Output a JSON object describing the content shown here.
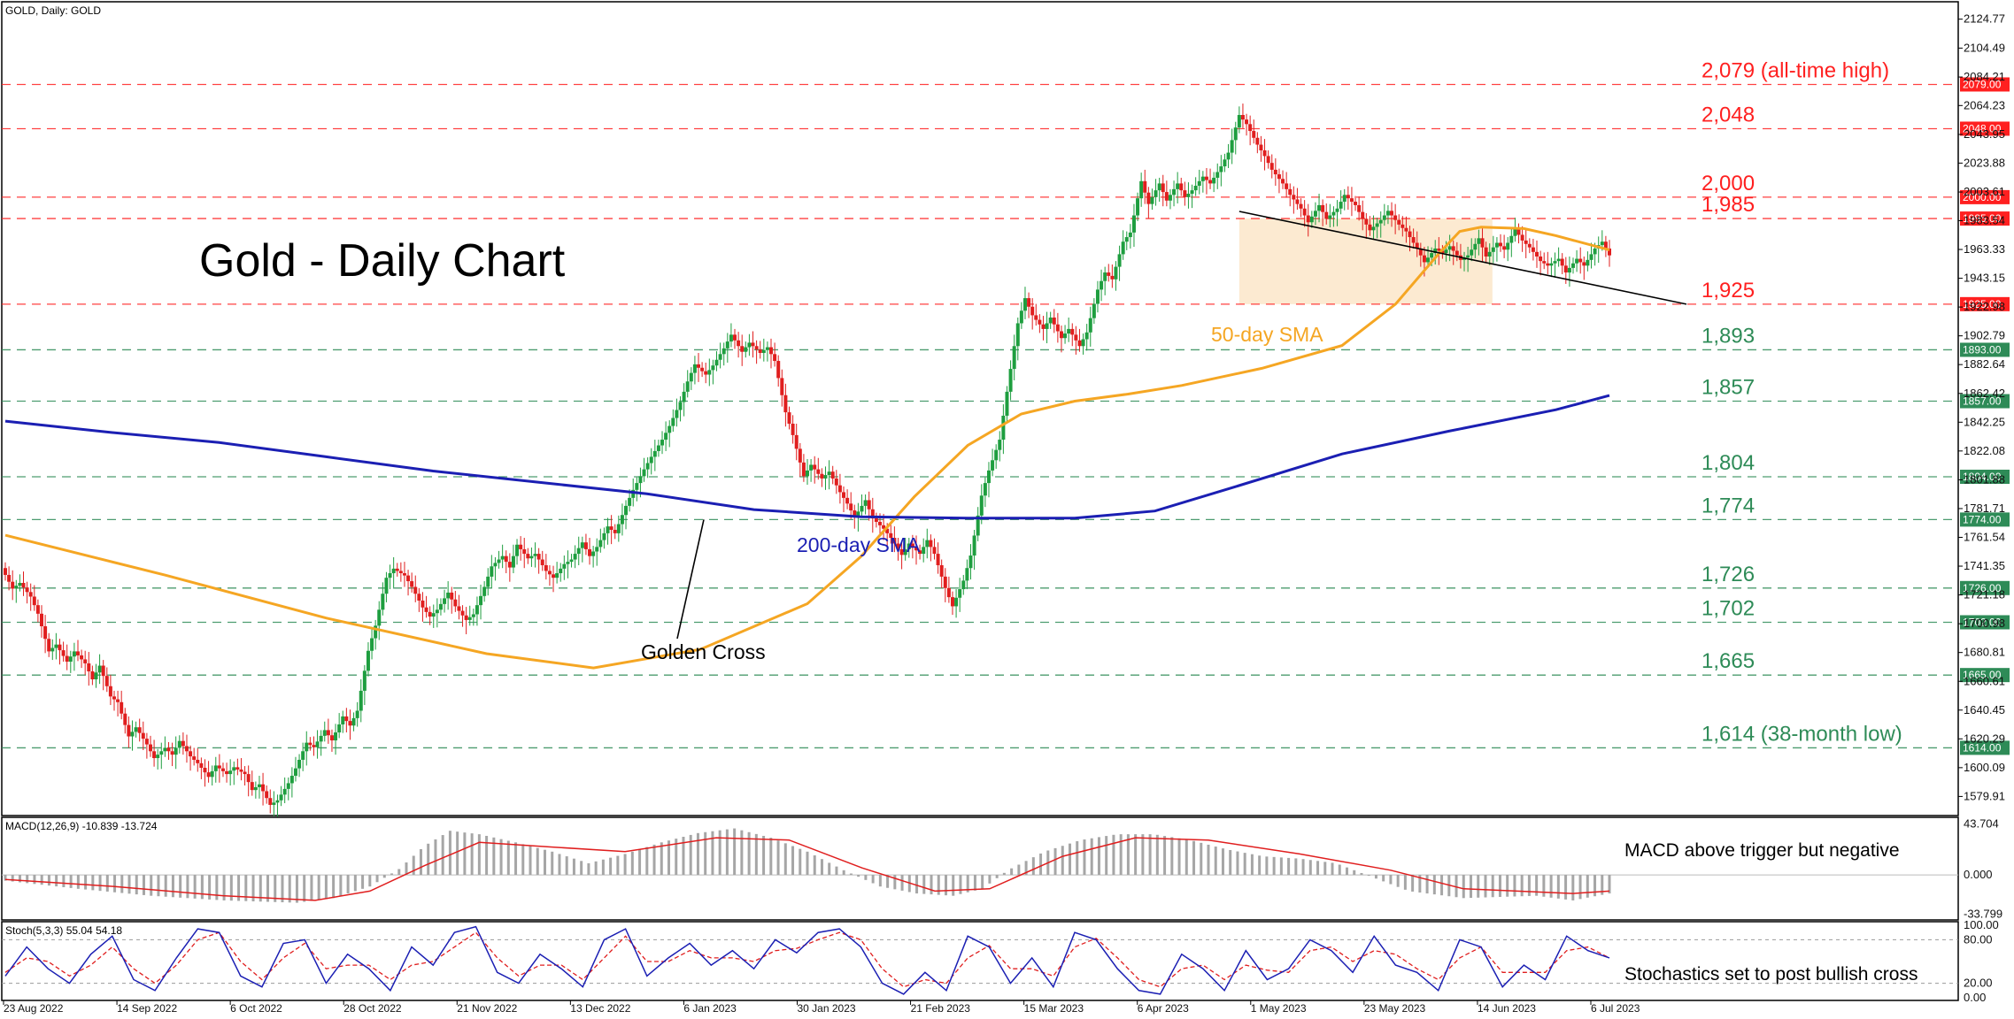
{
  "chart_data": {
    "type": "candlestick",
    "symbol_header": "GOLD, Daily:  GOLD",
    "title": "Gold - Daily Chart",
    "main_panel": {
      "ylim": [
        1569,
        2132
      ],
      "y_ticks": [
        "2124.77",
        "2104.49",
        "2084.21",
        "2064.23",
        "2043.95",
        "2023.88",
        "2003.61",
        "1983.54",
        "1963.33",
        "1943.15",
        "1922.98",
        "1902.79",
        "1882.64",
        "1862.42",
        "1842.25",
        "1822.08",
        "1801.88",
        "1781.71",
        "1761.54",
        "1741.35",
        "1721.18",
        "1700.98",
        "1680.81",
        "1660.61",
        "1640.45",
        "1620.29",
        "1600.09",
        "1579.91"
      ],
      "levels": [
        {
          "value": 2079,
          "box": "2079.00",
          "label": "2,079 (all-time high)",
          "color": "#ff2020"
        },
        {
          "value": 2048,
          "box": "2048.00",
          "label": "2,048",
          "color": "#ff2020"
        },
        {
          "value": 2000,
          "box": "2000.00",
          "label": "2,000",
          "color": "#ff2020"
        },
        {
          "value": 1985,
          "box": "1985.00",
          "label": "1,985",
          "color": "#ff2020"
        },
        {
          "value": 1925,
          "box": "1925.00",
          "label": "1,925",
          "color": "#ff2020"
        },
        {
          "value": 1893,
          "box": "1893.00",
          "label": "1,893",
          "color": "#2e8b57"
        },
        {
          "value": 1857,
          "box": "1857.00",
          "label": "1,857",
          "color": "#2e8b57"
        },
        {
          "value": 1804,
          "box": "1804.00",
          "label": "1,804",
          "color": "#2e8b57"
        },
        {
          "value": 1774,
          "box": "1774.00",
          "label": "1,774",
          "color": "#2e8b57"
        },
        {
          "value": 1726,
          "box": "1726.00",
          "label": "1,726",
          "color": "#2e8b57"
        },
        {
          "value": 1702,
          "box": "1702.00",
          "label": "1,702",
          "color": "#2e8b57"
        },
        {
          "value": 1665,
          "box": "1665.00",
          "label": "1,665",
          "color": "#2e8b57"
        },
        {
          "value": 1614,
          "box": "1614.00",
          "label": "1,614 (38-month low)",
          "color": "#2e8b57"
        }
      ],
      "series": [
        {
          "name": "50-day SMA",
          "color": "#f5a623",
          "points": [
            [
              0,
              1763
            ],
            [
              30,
              1735
            ],
            [
              60,
              1705
            ],
            [
              90,
              1680
            ],
            [
              110,
              1670
            ],
            [
              130,
              1683
            ],
            [
              150,
              1715
            ],
            [
              160,
              1748
            ],
            [
              170,
              1790
            ],
            [
              180,
              1826
            ],
            [
              190,
              1848
            ],
            [
              200,
              1857
            ],
            [
              210,
              1862
            ],
            [
              220,
              1868
            ],
            [
              235,
              1880
            ],
            [
              250,
              1896
            ],
            [
              260,
              1925
            ],
            [
              268,
              1960
            ],
            [
              272,
              1976
            ],
            [
              276,
              1979
            ],
            [
              284,
              1978
            ],
            [
              290,
              1973
            ],
            [
              300,
              1963
            ]
          ]
        },
        {
          "name": "200-day SMA",
          "color": "#1b1fb3",
          "points": [
            [
              0,
              1843
            ],
            [
              20,
              1835
            ],
            [
              40,
              1828
            ],
            [
              60,
              1818
            ],
            [
              80,
              1808
            ],
            [
              100,
              1800
            ],
            [
              120,
              1792
            ],
            [
              140,
              1781
            ],
            [
              160,
              1776
            ],
            [
              180,
              1775
            ],
            [
              200,
              1775
            ],
            [
              215,
              1780
            ],
            [
              230,
              1797
            ],
            [
              250,
              1820
            ],
            [
              270,
              1836
            ],
            [
              290,
              1851
            ],
            [
              300,
              1861
            ]
          ]
        }
      ],
      "ohlc": {
        "start": 1740,
        "steps": [
          -12,
          5,
          -8,
          -15,
          -22,
          6,
          -10,
          9,
          -7,
          -14,
          12,
          -18,
          -5,
          -20,
          8,
          -10,
          -12,
          6,
          -6,
          12,
          -9,
          -6,
          -8,
          10,
          -5,
          6,
          -4,
          -14,
          5,
          -12,
          4,
          10,
          13,
          15,
          -4,
          10,
          -9,
          14,
          -8,
          13,
          35,
          22,
          28,
          8,
          -4,
          -10,
          -12,
          -8,
          6,
          10,
          -12,
          -8,
          5,
          16,
          18,
          6,
          -10,
          20,
          -8,
          4,
          -10,
          -6,
          8,
          4,
          10,
          -12,
          8,
          12,
          -6,
          16,
          14,
          12,
          11,
          10,
          12,
          14,
          18,
          15,
          -6,
          8,
          10,
          12,
          -10,
          8,
          -6,
          5,
          -12,
          -30,
          -20,
          -24,
          10,
          -8,
          6,
          -12,
          -10,
          -12,
          10,
          -16,
          -6,
          -8,
          -10,
          10,
          -6,
          12,
          -12,
          -20,
          -16,
          15,
          22,
          35,
          22,
          18,
          42,
          40,
          22,
          -15,
          -8,
          10,
          -12,
          8,
          -10,
          12,
          25,
          15,
          -6,
          22,
          8,
          30,
          -20,
          12,
          -15,
          10,
          -12,
          6,
          8,
          -6,
          10,
          12,
          22,
          -8,
          -12,
          -10,
          -12,
          -8,
          -10,
          -8,
          -12,
          10,
          -12,
          6,
          12,
          -6,
          -12,
          -10,
          6,
          8,
          -8,
          -6,
          -10,
          -12,
          8,
          -4,
          6,
          -8,
          4,
          10,
          -16,
          8,
          -6,
          12,
          -10,
          -6,
          -8,
          -4,
          4,
          -12,
          8,
          -6,
          10,
          6,
          -12
        ]
      },
      "shaded_zone": {
        "from": 1925,
        "to": 1985
      }
    },
    "annotations": [
      {
        "text": "50-day SMA"
      },
      {
        "text": "200-day SMA"
      },
      {
        "text": "Golden Cross"
      }
    ],
    "x_labels": [
      "23 Aug 2022",
      "14 Sep 2022",
      "6 Oct 2022",
      "28 Oct 2022",
      "21 Nov 2022",
      "13 Dec 2022",
      "6 Jan 2023",
      "30 Jan 2023",
      "21 Feb 2023",
      "15 Mar 2023",
      "6 Apr 2023",
      "1 May 2023",
      "23 May 2023",
      "14 Jun 2023",
      "6 Jul 2023"
    ],
    "macd_panel": {
      "header": "MACD(12,26,9) -10.839 -13.724",
      "annotation": "MACD above trigger but negative",
      "y_ticks": [
        "43.704",
        "0.000",
        "-33.799"
      ],
      "ylim": [
        -35,
        45
      ],
      "histogram": [
        [
          0,
          -5
        ],
        [
          20,
          -12
        ],
        [
          40,
          -18
        ],
        [
          60,
          -22
        ],
        [
          80,
          -24
        ],
        [
          90,
          -20
        ],
        [
          100,
          -10
        ],
        [
          108,
          5
        ],
        [
          115,
          25
        ],
        [
          122,
          38
        ],
        [
          130,
          35
        ],
        [
          140,
          28
        ],
        [
          150,
          20
        ],
        [
          160,
          10
        ],
        [
          170,
          18
        ],
        [
          180,
          28
        ],
        [
          190,
          36
        ],
        [
          200,
          40
        ],
        [
          210,
          32
        ],
        [
          220,
          20
        ],
        [
          230,
          4
        ],
        [
          240,
          -10
        ],
        [
          250,
          -16
        ],
        [
          260,
          -18
        ],
        [
          268,
          -12
        ],
        [
          275,
          4
        ],
        [
          285,
          20
        ],
        [
          295,
          30
        ],
        [
          305,
          35
        ],
        [
          315,
          35
        ],
        [
          325,
          30
        ],
        [
          335,
          22
        ],
        [
          345,
          16
        ],
        [
          355,
          14
        ],
        [
          365,
          10
        ],
        [
          375,
          -2
        ],
        [
          385,
          -14
        ],
        [
          400,
          -20
        ],
        [
          420,
          -18
        ],
        [
          430,
          -22
        ],
        [
          440,
          -16
        ]
      ],
      "signal": [
        [
          0,
          -4
        ],
        [
          30,
          -10
        ],
        [
          60,
          -18
        ],
        [
          85,
          -22
        ],
        [
          100,
          -14
        ],
        [
          115,
          8
        ],
        [
          130,
          28
        ],
        [
          150,
          24
        ],
        [
          170,
          20
        ],
        [
          195,
          32
        ],
        [
          215,
          30
        ],
        [
          235,
          6
        ],
        [
          255,
          -14
        ],
        [
          270,
          -12
        ],
        [
          290,
          16
        ],
        [
          310,
          32
        ],
        [
          330,
          30
        ],
        [
          355,
          18
        ],
        [
          380,
          4
        ],
        [
          400,
          -12
        ],
        [
          430,
          -16
        ],
        [
          440,
          -14
        ]
      ]
    },
    "stoch_panel": {
      "header": "Stoch(5,3,3) 55.04 54.18",
      "annotation": "Stochastics set to post bullish cross",
      "y_ticks": [
        "100.00",
        "80.00",
        "20.00",
        "0.00"
      ],
      "ylim": [
        0,
        100
      ],
      "levels": [
        80,
        20
      ],
      "k_line": [
        [
          0,
          30
        ],
        [
          8,
          70
        ],
        [
          16,
          40
        ],
        [
          24,
          20
        ],
        [
          32,
          60
        ],
        [
          40,
          85
        ],
        [
          48,
          25
        ],
        [
          56,
          10
        ],
        [
          64,
          55
        ],
        [
          72,
          95
        ],
        [
          80,
          90
        ],
        [
          88,
          30
        ],
        [
          96,
          15
        ],
        [
          104,
          75
        ],
        [
          112,
          80
        ],
        [
          120,
          20
        ],
        [
          128,
          60
        ],
        [
          136,
          40
        ],
        [
          144,
          10
        ],
        [
          152,
          70
        ],
        [
          160,
          45
        ],
        [
          168,
          90
        ],
        [
          176,
          98
        ],
        [
          184,
          35
        ],
        [
          192,
          20
        ],
        [
          200,
          60
        ],
        [
          208,
          40
        ],
        [
          216,
          15
        ],
        [
          224,
          80
        ],
        [
          232,
          95
        ],
        [
          240,
          30
        ],
        [
          248,
          55
        ],
        [
          256,
          75
        ],
        [
          264,
          45
        ],
        [
          272,
          65
        ],
        [
          280,
          40
        ],
        [
          288,
          80
        ],
        [
          296,
          62
        ],
        [
          304,
          90
        ],
        [
          312,
          95
        ],
        [
          320,
          70
        ],
        [
          328,
          20
        ],
        [
          336,
          5
        ],
        [
          344,
          35
        ],
        [
          352,
          10
        ],
        [
          360,
          85
        ],
        [
          368,
          70
        ],
        [
          376,
          20
        ],
        [
          384,
          55
        ],
        [
          392,
          15
        ],
        [
          400,
          90
        ],
        [
          408,
          80
        ],
        [
          416,
          40
        ],
        [
          424,
          10
        ],
        [
          432,
          5
        ],
        [
          440,
          60
        ],
        [
          448,
          40
        ],
        [
          456,
          10
        ],
        [
          464,
          65
        ],
        [
          472,
          25
        ],
        [
          480,
          40
        ],
        [
          488,
          80
        ],
        [
          496,
          65
        ],
        [
          504,
          35
        ],
        [
          512,
          85
        ],
        [
          520,
          45
        ],
        [
          528,
          35
        ],
        [
          536,
          10
        ],
        [
          544,
          80
        ],
        [
          552,
          70
        ],
        [
          560,
          15
        ],
        [
          568,
          45
        ],
        [
          576,
          25
        ],
        [
          584,
          85
        ],
        [
          592,
          65
        ],
        [
          600,
          55
        ]
      ],
      "d_line": [
        [
          0,
          35
        ],
        [
          8,
          55
        ],
        [
          16,
          50
        ],
        [
          24,
          30
        ],
        [
          32,
          45
        ],
        [
          40,
          70
        ],
        [
          48,
          40
        ],
        [
          56,
          20
        ],
        [
          64,
          45
        ],
        [
          72,
          80
        ],
        [
          80,
          90
        ],
        [
          88,
          50
        ],
        [
          96,
          25
        ],
        [
          104,
          55
        ],
        [
          112,
          75
        ],
        [
          120,
          40
        ],
        [
          128,
          45
        ],
        [
          136,
          45
        ],
        [
          144,
          25
        ],
        [
          152,
          45
        ],
        [
          160,
          50
        ],
        [
          168,
          70
        ],
        [
          176,
          90
        ],
        [
          184,
          55
        ],
        [
          192,
          30
        ],
        [
          200,
          45
        ],
        [
          208,
          45
        ],
        [
          216,
          25
        ],
        [
          224,
          55
        ],
        [
          232,
          85
        ],
        [
          240,
          50
        ],
        [
          248,
          50
        ],
        [
          256,
          65
        ],
        [
          264,
          55
        ],
        [
          272,
          55
        ],
        [
          280,
          50
        ],
        [
          288,
          65
        ],
        [
          296,
          68
        ],
        [
          304,
          80
        ],
        [
          312,
          90
        ],
        [
          320,
          80
        ],
        [
          328,
          40
        ],
        [
          336,
          15
        ],
        [
          344,
          25
        ],
        [
          352,
          20
        ],
        [
          360,
          55
        ],
        [
          368,
          72
        ],
        [
          376,
          40
        ],
        [
          384,
          40
        ],
        [
          392,
          30
        ],
        [
          400,
          70
        ],
        [
          408,
          82
        ],
        [
          416,
          55
        ],
        [
          424,
          25
        ],
        [
          432,
          15
        ],
        [
          440,
          40
        ],
        [
          448,
          45
        ],
        [
          456,
          25
        ],
        [
          464,
          45
        ],
        [
          472,
          38
        ],
        [
          480,
          35
        ],
        [
          488,
          65
        ],
        [
          496,
          70
        ],
        [
          504,
          50
        ],
        [
          512,
          65
        ],
        [
          520,
          60
        ],
        [
          528,
          40
        ],
        [
          536,
          25
        ],
        [
          544,
          55
        ],
        [
          552,
          70
        ],
        [
          560,
          35
        ],
        [
          568,
          35
        ],
        [
          576,
          35
        ],
        [
          584,
          65
        ],
        [
          592,
          70
        ],
        [
          600,
          55
        ]
      ]
    }
  }
}
